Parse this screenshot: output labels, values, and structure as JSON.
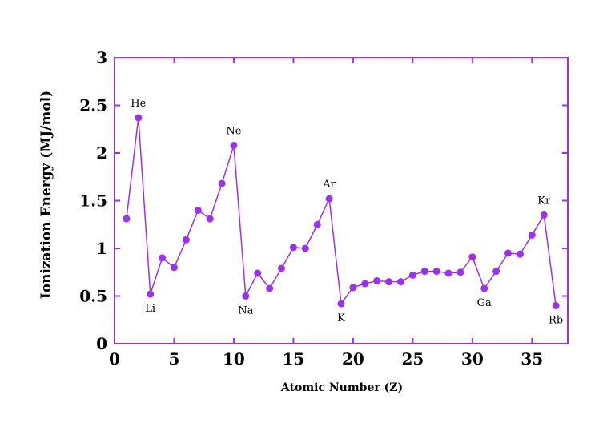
{
  "chart_data": {
    "type": "line",
    "xlabel": "Atomic Number (Z)",
    "ylabel": "Ionization Energy (MJ/mol)",
    "xlim": [
      0,
      38
    ],
    "ylim": [
      0,
      3
    ],
    "x_ticks": [
      0,
      5,
      10,
      15,
      20,
      25,
      30,
      35
    ],
    "y_ticks": [
      0,
      0.5,
      1,
      1.5,
      2,
      2.5,
      3
    ],
    "grid": false,
    "colors": {
      "series": "#9a32e6",
      "axis": "#9a32e6",
      "text": "#000000"
    },
    "series": [
      {
        "x": [
          1,
          2,
          3,
          4,
          5,
          6,
          7,
          8,
          9,
          10,
          11,
          12,
          13,
          14,
          15,
          16,
          17,
          18,
          19,
          20,
          21,
          22,
          23,
          24,
          25,
          26,
          27,
          28,
          29,
          30,
          31,
          32,
          33,
          34,
          35,
          36,
          37
        ],
        "values": [
          1.31,
          2.37,
          0.52,
          0.9,
          0.8,
          1.09,
          1.4,
          1.31,
          1.68,
          2.08,
          0.5,
          0.74,
          0.58,
          0.79,
          1.01,
          1.0,
          1.25,
          1.52,
          0.42,
          0.59,
          0.63,
          0.66,
          0.65,
          0.65,
          0.72,
          0.76,
          0.76,
          0.74,
          0.75,
          0.91,
          0.58,
          0.76,
          0.95,
          0.94,
          1.14,
          1.35,
          0.4
        ]
      }
    ],
    "annotations": [
      {
        "text": "He",
        "x": 2,
        "y": 2.37,
        "pos": "above"
      },
      {
        "text": "Li",
        "x": 3,
        "y": 0.52,
        "pos": "below"
      },
      {
        "text": "Ne",
        "x": 10,
        "y": 2.08,
        "pos": "above"
      },
      {
        "text": "Na",
        "x": 11,
        "y": 0.5,
        "pos": "below"
      },
      {
        "text": "Ar",
        "x": 18,
        "y": 1.52,
        "pos": "above"
      },
      {
        "text": "K",
        "x": 19,
        "y": 0.42,
        "pos": "below"
      },
      {
        "text": "Ga",
        "x": 31,
        "y": 0.58,
        "pos": "below"
      },
      {
        "text": "Kr",
        "x": 36,
        "y": 1.35,
        "pos": "above"
      },
      {
        "text": "Rb",
        "x": 37,
        "y": 0.4,
        "pos": "below"
      }
    ]
  }
}
